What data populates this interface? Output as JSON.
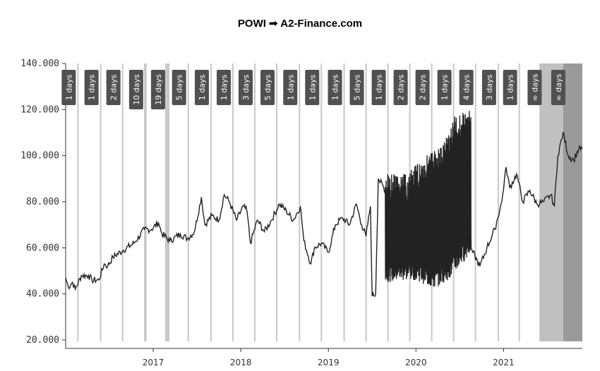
{
  "chart_data": {
    "type": "line",
    "title": "POWI ➟ A2-Finance.com",
    "xlabel": "",
    "ylabel": "",
    "xlim": [
      2016.0,
      2021.9
    ],
    "ylim": [
      20,
      140
    ],
    "yticks": [
      20,
      40,
      60,
      80,
      100,
      120,
      140
    ],
    "ytick_labels": [
      "20.000",
      "40.000",
      "60.000",
      "80.000",
      "100.000",
      "120.000",
      "140.000"
    ],
    "xticks": [
      2017,
      2018,
      2019,
      2020,
      2021
    ],
    "xtick_labels": [
      "2017",
      "2018",
      "2019",
      "2020",
      "2021"
    ],
    "colors": {
      "line": "#222222",
      "gap": "#c8c8c8",
      "label_bg": "#505050",
      "band_light": "#c0c0c0",
      "band_dark": "#9a9a9a"
    },
    "series": [
      {
        "name": "POWI",
        "points": [
          [
            2016.0,
            47
          ],
          [
            2016.03,
            43
          ],
          [
            2016.08,
            45
          ],
          [
            2016.11,
            42
          ],
          [
            2016.18,
            48
          ],
          [
            2016.26,
            48
          ],
          [
            2016.3,
            46
          ],
          [
            2016.38,
            46
          ],
          [
            2016.44,
            53
          ],
          [
            2016.48,
            52
          ],
          [
            2016.54,
            56
          ],
          [
            2016.66,
            59
          ],
          [
            2016.78,
            62
          ],
          [
            2016.9,
            68
          ],
          [
            2016.98,
            68
          ],
          [
            2017.06,
            71
          ],
          [
            2017.1,
            66
          ],
          [
            2017.19,
            63
          ],
          [
            2017.31,
            66
          ],
          [
            2017.39,
            64
          ],
          [
            2017.47,
            67
          ],
          [
            2017.55,
            82
          ],
          [
            2017.59,
            70
          ],
          [
            2017.67,
            74
          ],
          [
            2017.75,
            72
          ],
          [
            2017.81,
            83
          ],
          [
            2017.87,
            80
          ],
          [
            2017.95,
            72
          ],
          [
            2018.03,
            78
          ],
          [
            2018.07,
            76
          ],
          [
            2018.11,
            62
          ],
          [
            2018.19,
            72
          ],
          [
            2018.27,
            67
          ],
          [
            2018.35,
            72
          ],
          [
            2018.44,
            79
          ],
          [
            2018.52,
            76
          ],
          [
            2018.6,
            72
          ],
          [
            2018.68,
            78
          ],
          [
            2018.72,
            63
          ],
          [
            2018.8,
            53
          ],
          [
            2018.84,
            60
          ],
          [
            2018.92,
            62
          ],
          [
            2019.0,
            58
          ],
          [
            2019.08,
            70
          ],
          [
            2019.16,
            73
          ],
          [
            2019.24,
            70
          ],
          [
            2019.32,
            79
          ],
          [
            2019.38,
            70
          ],
          [
            2019.43,
            65
          ],
          [
            2019.48,
            78
          ],
          [
            2019.5,
            39
          ],
          [
            2019.54,
            40
          ],
          [
            2019.57,
            90
          ],
          [
            2019.65,
            85
          ],
          [
            2020.63,
            60
          ],
          [
            2020.65,
            58
          ],
          [
            2020.73,
            52
          ],
          [
            2020.81,
            60
          ],
          [
            2020.9,
            68
          ],
          [
            2020.98,
            80
          ],
          [
            2021.03,
            95
          ],
          [
            2021.07,
            86
          ],
          [
            2021.15,
            92
          ],
          [
            2021.22,
            80
          ],
          [
            2021.3,
            85
          ],
          [
            2021.38,
            79
          ],
          [
            2021.46,
            80
          ],
          [
            2021.54,
            83
          ],
          [
            2021.58,
            78
          ],
          [
            2021.62,
            100
          ],
          [
            2021.68,
            110
          ],
          [
            2021.74,
            100
          ],
          [
            2021.8,
            98
          ],
          [
            2021.86,
            103
          ],
          [
            2021.9,
            103
          ]
        ]
      }
    ],
    "volatile_range": {
      "start": 2019.65,
      "end": 2020.63,
      "low": [
        [
          2019.65,
          45
        ],
        [
          2020.0,
          46
        ],
        [
          2020.2,
          42
        ],
        [
          2020.4,
          47
        ],
        [
          2020.63,
          58
        ]
      ],
      "high": [
        [
          2019.65,
          92
        ],
        [
          2019.9,
          92
        ],
        [
          2020.1,
          100
        ],
        [
          2020.3,
          105
        ],
        [
          2020.45,
          118
        ],
        [
          2020.63,
          120
        ]
      ]
    },
    "gaps": [
      {
        "at": 2016.14,
        "label": "1 days"
      },
      {
        "at": 2016.4,
        "label": "1 days"
      },
      {
        "at": 2016.65,
        "label": "2 days"
      },
      {
        "at": 2016.91,
        "label": "10 days",
        "width": 0.03
      },
      {
        "at": 2017.16,
        "label": "19 days",
        "width": 0.05
      },
      {
        "at": 2017.4,
        "label": "5 days"
      },
      {
        "at": 2017.66,
        "label": "1 days"
      },
      {
        "at": 2017.91,
        "label": "1 days"
      },
      {
        "at": 2018.16,
        "label": "3 days"
      },
      {
        "at": 2018.41,
        "label": "5 days"
      },
      {
        "at": 2018.67,
        "label": "1 days"
      },
      {
        "at": 2018.92,
        "label": "1 days"
      },
      {
        "at": 2019.18,
        "label": "1 days"
      },
      {
        "at": 2019.43,
        "label": "5 days"
      },
      {
        "at": 2019.68,
        "label": "1 days"
      },
      {
        "at": 2019.93,
        "label": "2 days"
      },
      {
        "at": 2020.18,
        "label": "2 days"
      },
      {
        "at": 2020.43,
        "label": "1 days"
      },
      {
        "at": 2020.68,
        "label": "4 days"
      },
      {
        "at": 2020.94,
        "label": "3 days"
      },
      {
        "at": 2021.18,
        "label": "1 days"
      }
    ],
    "bands": [
      {
        "start": 2021.41,
        "end": 2021.68,
        "label": "∞ days",
        "shade": "light"
      },
      {
        "start": 2021.68,
        "end": 2021.9,
        "label": "∞ days",
        "shade": "dark"
      }
    ]
  }
}
